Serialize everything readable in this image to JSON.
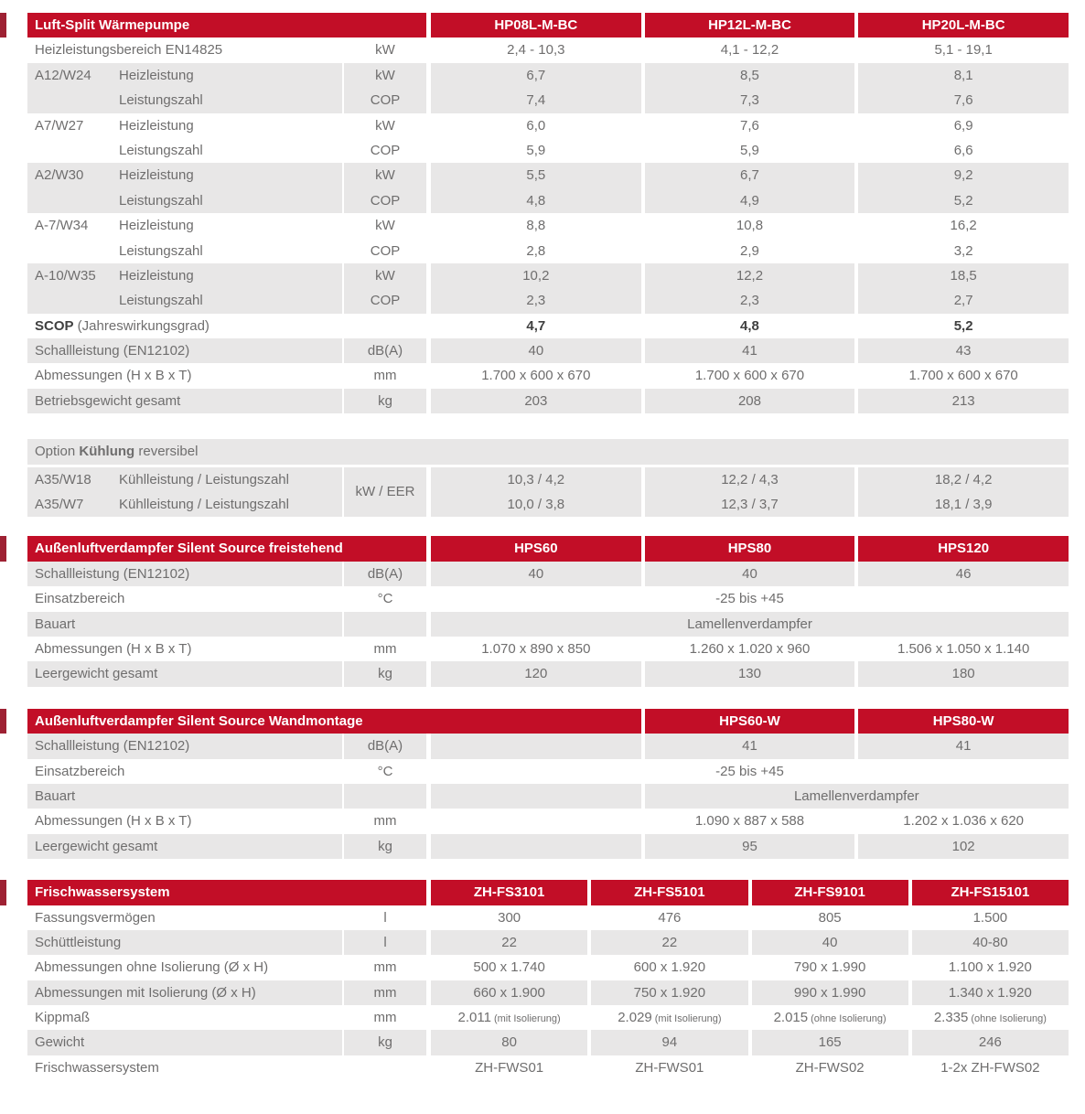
{
  "colors": {
    "header_red": "#c20e27",
    "bleed_red": "#9e2133",
    "row_gray": "#e8e7e7",
    "text_gray": "#6f6e6e",
    "text_dark": "#404040"
  },
  "t1": {
    "title": "Luft-Split Wärmepumpe",
    "models": [
      "HP08L-M-BC",
      "HP12L-M-BC",
      "HP20L-M-BC"
    ],
    "rows": [
      {
        "c": "",
        "l": "Heizleistungsbereich EN14825",
        "u": "kW",
        "v": [
          "2,4 - 10,3",
          "4,1 - 12,2",
          "5,1 - 19,1"
        ]
      },
      {
        "c": "A12/W24",
        "l": "Heizleistung",
        "u": "kW",
        "v": [
          "6,7",
          "8,5",
          "8,1"
        ]
      },
      {
        "c": "",
        "l": "Leistungszahl",
        "u": "COP",
        "v": [
          "7,4",
          "7,3",
          "7,6"
        ]
      },
      {
        "c": "A7/W27",
        "l": "Heizleistung",
        "u": "kW",
        "v": [
          "6,0",
          "7,6",
          "6,9"
        ]
      },
      {
        "c": "",
        "l": "Leistungszahl",
        "u": "COP",
        "v": [
          "5,9",
          "5,9",
          "6,6"
        ]
      },
      {
        "c": "A2/W30",
        "l": "Heizleistung",
        "u": "kW",
        "v": [
          "5,5",
          "6,7",
          "9,2"
        ]
      },
      {
        "c": "",
        "l": "Leistungszahl",
        "u": "COP",
        "v": [
          "4,8",
          "4,9",
          "5,2"
        ]
      },
      {
        "c": "A-7/W34",
        "l": "Heizleistung",
        "u": "kW",
        "v": [
          "8,8",
          "10,8",
          "16,2"
        ]
      },
      {
        "c": "",
        "l": "Leistungszahl",
        "u": "COP",
        "v": [
          "2,8",
          "2,9",
          "3,2"
        ]
      },
      {
        "c": "A-10/W35",
        "l": "Heizleistung",
        "u": "kW",
        "v": [
          "10,2",
          "12,2",
          "18,5"
        ]
      },
      {
        "c": "",
        "l": "Leistungszahl",
        "u": "COP",
        "v": [
          "2,3",
          "2,3",
          "2,7"
        ]
      },
      {
        "lb": "SCOP",
        "l": " (Jahreswirkungsgrad)",
        "u": "",
        "v": [
          "4,7",
          "4,8",
          "5,2"
        ]
      },
      {
        "c": "",
        "l": "Schallleistung (EN12102)",
        "u": "dB(A)",
        "v": [
          "40",
          "41",
          "43"
        ]
      },
      {
        "c": "",
        "l": "Abmessungen (H x B x T)",
        "u": "mm",
        "v": [
          "1.700 x 600 x 670",
          "1.700 x 600 x 670",
          "1.700 x 600 x 670"
        ]
      },
      {
        "c": "",
        "l": "Betriebsgewicht gesamt",
        "u": "kg",
        "v": [
          "203",
          "208",
          "213"
        ]
      }
    ]
  },
  "option": {
    "pre": "Option ",
    "bold": "Kühlung",
    "post": " reversibel",
    "unit": "kW / EER",
    "rows": [
      {
        "c": "A35/W18",
        "l": "Kühlleistung / Leistungszahl",
        "v": [
          "10,3 / 4,2",
          "12,2 / 4,3",
          "18,2 / 4,2"
        ]
      },
      {
        "c": "A35/W7",
        "l": "Kühlleistung / Leistungszahl",
        "v": [
          "10,0 / 3,8",
          "12,3 / 3,7",
          "18,1 / 3,9"
        ]
      }
    ]
  },
  "t2": {
    "title": "Außenluftverdampfer Silent Source freistehend",
    "models": [
      "HPS60",
      "HPS80",
      "HPS120"
    ],
    "rows": [
      {
        "l": "Schallleistung (EN12102)",
        "u": "dB(A)",
        "v": [
          "40",
          "40",
          "46"
        ]
      },
      {
        "l": "Einsatzbereich",
        "u": "°C",
        "span": "-25 bis +45"
      },
      {
        "l": "Bauart",
        "u": "",
        "span": "Lamellenverdampfer"
      },
      {
        "l": "Abmessungen (H x B x T)",
        "u": "mm",
        "v": [
          "1.070 x 890 x 850",
          "1.260 x 1.020 x 960",
          "1.506 x 1.050 x 1.140"
        ]
      },
      {
        "l": "Leergewicht gesamt",
        "u": "kg",
        "v": [
          "120",
          "130",
          "180"
        ]
      }
    ]
  },
  "t3": {
    "title": "Außenluftverdampfer Silent Source Wandmontage",
    "models": [
      "HPS60-W",
      "HPS80-W"
    ],
    "rows": [
      {
        "l": "Schallleistung (EN12102)",
        "u": "dB(A)",
        "v": [
          "41",
          "41"
        ]
      },
      {
        "l": "Einsatzbereich",
        "u": "°C",
        "span": "-25 bis +45"
      },
      {
        "l": "Bauart",
        "u": "",
        "span": "Lamellenverdampfer"
      },
      {
        "l": "Abmessungen (H x B x T)",
        "u": "mm",
        "v": [
          "1.090 x 887 x 588",
          "1.202 x 1.036 x 620"
        ]
      },
      {
        "l": "Leergewicht gesamt",
        "u": "kg",
        "v": [
          "95",
          "102"
        ]
      }
    ]
  },
  "t4": {
    "title": "Frischwassersystem",
    "models": [
      "ZH-FS3101",
      "ZH-FS5101",
      "ZH-FS9101",
      "ZH-FS15101"
    ],
    "rows": [
      {
        "l": "Fassungsvermögen",
        "u": "l",
        "v": [
          "300",
          "476",
          "805",
          "1.500"
        ]
      },
      {
        "l": "Schüttleistung",
        "u": "l",
        "v": [
          "22",
          "22",
          "40",
          "40-80"
        ]
      },
      {
        "l": "Abmessungen ohne Isolierung (Ø x H)",
        "u": "mm",
        "v": [
          "500 x 1.740",
          "600 x 1.920",
          "790 x 1.990",
          "1.100 x 1.920"
        ]
      },
      {
        "l": "Abmessungen mit Isolierung (Ø x H)",
        "u": "mm",
        "v": [
          "660 x 1.900",
          "750 x 1.920",
          "990 x 1.990",
          "1.340 x 1.920"
        ]
      },
      {
        "l": "Kippmaß",
        "u": "mm",
        "kv": [
          {
            "n": "2.011",
            "s": "(mit Isolierung)"
          },
          {
            "n": "2.029",
            "s": "(mit Isolierung)"
          },
          {
            "n": "2.015",
            "s": "(ohne Isolierung)"
          },
          {
            "n": "2.335",
            "s": "(ohne Isolierung)"
          }
        ]
      },
      {
        "l": "Gewicht",
        "u": "kg",
        "v": [
          "80",
          "94",
          "165",
          "246"
        ]
      },
      {
        "l": "Frischwassersystem",
        "u": "",
        "v": [
          "ZH-FWS01",
          "ZH-FWS01",
          "ZH-FWS02",
          "1-2x ZH-FWS02"
        ]
      }
    ]
  }
}
